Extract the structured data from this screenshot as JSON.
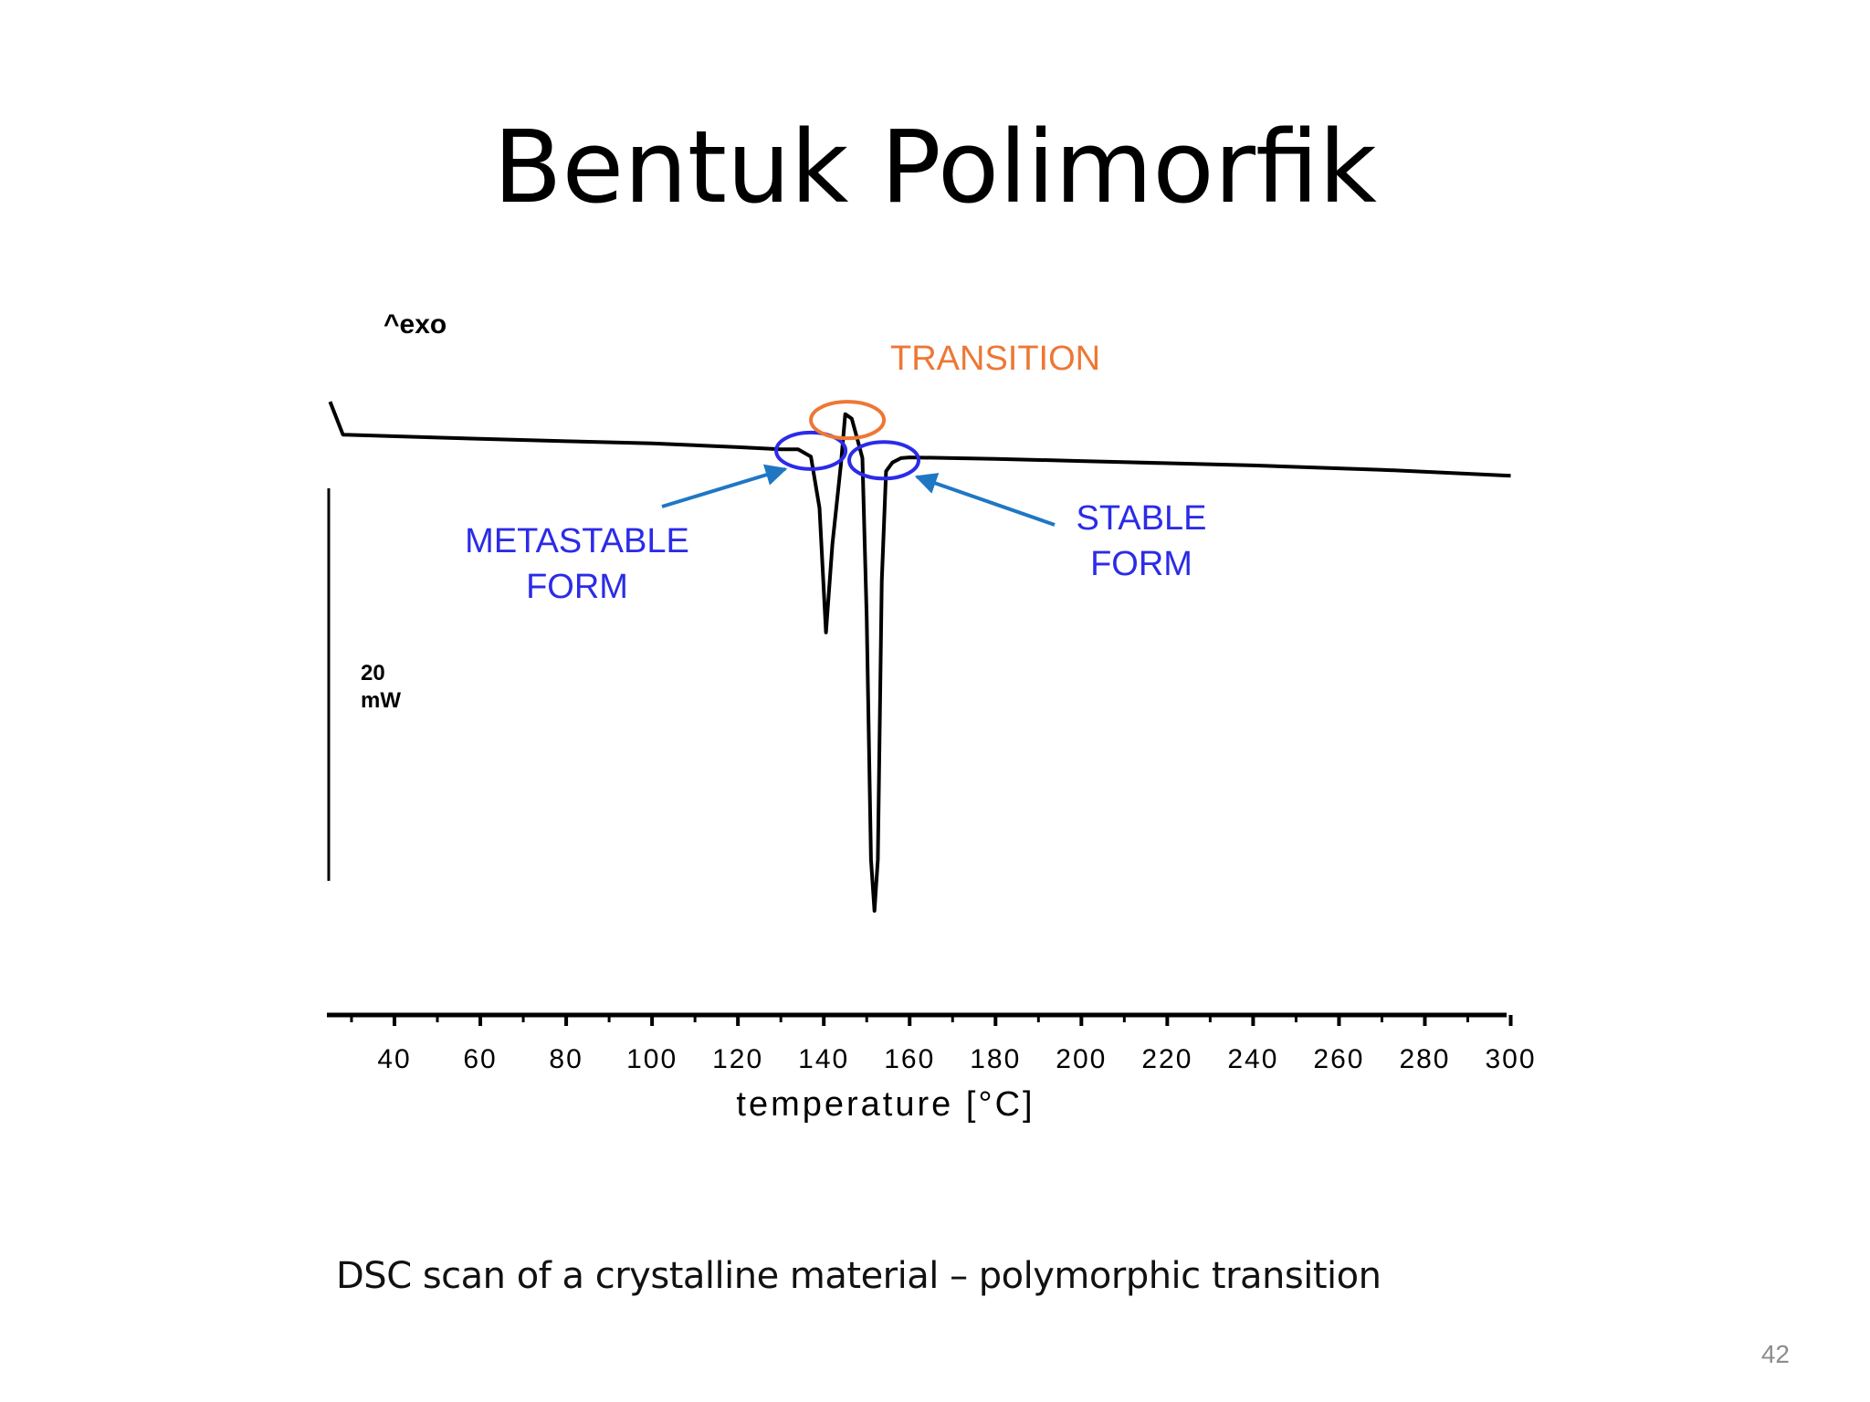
{
  "slide": {
    "title": "Bentuk Polimorfik",
    "caption": "DSC scan of a crystalline material – polymorphic transition",
    "page_number": "42"
  },
  "colors": {
    "curve": "#000000",
    "form_annotation": "#2b2be8",
    "transition_annotation": "#ee7733",
    "arrow": "#1f77c4"
  },
  "chart_data": {
    "type": "line",
    "title": "",
    "xlabel": "temperature [°C]",
    "ylabel": "",
    "exo_label": "^exo",
    "scale_bar": {
      "value_label": "20",
      "unit_label": "mW",
      "value": 20,
      "unit": "mW"
    },
    "x_ticks": [
      40,
      60,
      80,
      100,
      120,
      140,
      160,
      180,
      200,
      220,
      240,
      260,
      280,
      300
    ],
    "xlim": [
      25,
      300
    ],
    "ylim": [
      -68,
      8
    ],
    "grid": false,
    "legend": "none",
    "series": [
      {
        "points": [
          [
            25,
            4.5
          ],
          [
            28,
            0
          ],
          [
            50,
            -0.4
          ],
          [
            80,
            -0.9
          ],
          [
            100,
            -1.2
          ],
          [
            120,
            -1.7
          ],
          [
            130,
            -2.0
          ],
          [
            134,
            -2.0
          ],
          [
            137,
            -3.0
          ],
          [
            139,
            -10
          ],
          [
            140.5,
            -27
          ],
          [
            142,
            -15
          ],
          [
            144,
            -4
          ],
          [
            145,
            2.8
          ],
          [
            146.5,
            2.2
          ],
          [
            148,
            -1.0
          ],
          [
            149,
            -3.2
          ],
          [
            150,
            -25
          ],
          [
            151,
            -58
          ],
          [
            151.8,
            -65
          ],
          [
            152.6,
            -58
          ],
          [
            153.5,
            -20
          ],
          [
            154.5,
            -5.0
          ],
          [
            156,
            -3.8
          ],
          [
            158,
            -3.2
          ],
          [
            160,
            -3.1
          ],
          [
            180,
            -3.3
          ],
          [
            200,
            -3.6
          ],
          [
            240,
            -4.2
          ],
          [
            270,
            -4.8
          ],
          [
            300,
            -5.6
          ]
        ]
      }
    ],
    "annotations": [
      {
        "id": "metastable",
        "lines": [
          "METASTABLE",
          "FORM"
        ],
        "x": 137,
        "y": -2.2,
        "kind": "form"
      },
      {
        "id": "stable",
        "lines": [
          "STABLE",
          "FORM"
        ],
        "x": 154,
        "y": -3.5,
        "kind": "form"
      },
      {
        "id": "transition",
        "lines": [
          "TRANSITION"
        ],
        "x": 145.5,
        "y": 2.0,
        "kind": "transition"
      }
    ]
  }
}
